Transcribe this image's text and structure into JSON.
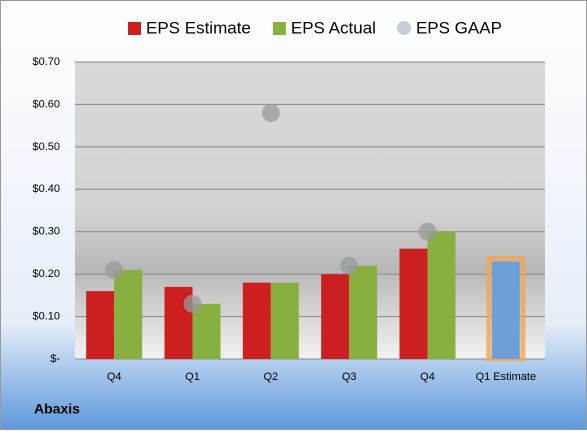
{
  "chart_data": {
    "type": "bar",
    "title": "Abaxis",
    "categories": [
      "Q4",
      "Q1",
      "Q2",
      "Q3",
      "Q4",
      "Q1 Estimate"
    ],
    "series": [
      {
        "name": "EPS Estimate",
        "color": "#cc2020",
        "values": [
          0.16,
          0.17,
          0.18,
          0.2,
          0.26,
          0.23
        ]
      },
      {
        "name": "EPS Actual",
        "color": "#88b040",
        "values": [
          0.21,
          0.13,
          0.18,
          0.22,
          0.3,
          null
        ]
      },
      {
        "name": "EPS GAAP",
        "color": "#9a9a9a",
        "marker": "circle",
        "values": [
          0.21,
          0.13,
          0.58,
          0.22,
          0.3,
          null
        ]
      }
    ],
    "highlight": {
      "index": 5,
      "color": "#6f9fd8",
      "border": "#f0a850"
    },
    "ylim": [
      0,
      0.7
    ],
    "yticks": [
      {
        "value": 0,
        "label": "$-"
      },
      {
        "value": 0.1,
        "label": "$0.10"
      },
      {
        "value": 0.2,
        "label": "$0.20"
      },
      {
        "value": 0.3,
        "label": "$0.30"
      },
      {
        "value": 0.4,
        "label": "$0.40"
      },
      {
        "value": 0.5,
        "label": "$0.50"
      },
      {
        "value": 0.6,
        "label": "$0.60"
      },
      {
        "value": 0.7,
        "label": "$0.70"
      }
    ],
    "grid": true
  }
}
